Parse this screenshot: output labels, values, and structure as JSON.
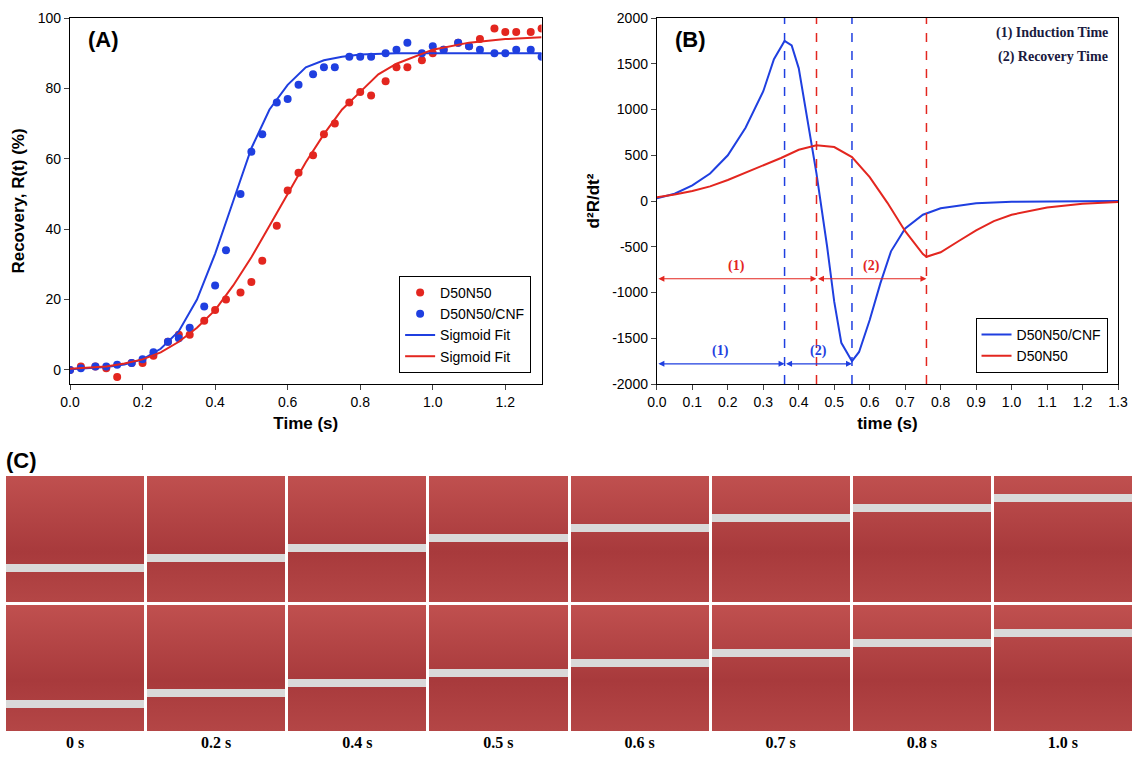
{
  "chart_data": [
    {
      "type": "scatter",
      "panel": "(A)",
      "x_label": "Time (s)",
      "y_label": "Recovery, R(t) (%)",
      "xlim": [
        0,
        1.3
      ],
      "xticks": [
        {
          "value": 0,
          "label": "0.0"
        },
        0.2,
        0.4,
        0.6,
        0.8,
        {
          "value": 1,
          "label": "1.0"
        },
        1.2
      ],
      "ylim": [
        -4,
        100
      ],
      "yticks": [
        0,
        20,
        40,
        60,
        80,
        100
      ],
      "grid": false,
      "legend": "bottom right",
      "series": [
        {
          "name": "D50N50",
          "type": "scatter",
          "marker": "circle",
          "color": "#e3261f",
          "x": [
            0,
            0.03,
            0.07,
            0.1,
            0.13,
            0.17,
            0.2,
            0.23,
            0.27,
            0.3,
            0.33,
            0.37,
            0.4,
            0.43,
            0.47,
            0.5,
            0.53,
            0.57,
            0.6,
            0.63,
            0.67,
            0.7,
            0.73,
            0.77,
            0.8,
            0.83,
            0.87,
            0.9,
            0.93,
            0.97,
            1.0,
            1.03,
            1.07,
            1.1,
            1.13,
            1.17,
            1.2,
            1.23,
            1.27,
            1.3
          ],
          "values": [
            0,
            1,
            1,
            0.5,
            -2,
            2,
            2,
            4,
            8,
            10,
            10,
            14,
            17,
            20,
            22,
            25,
            31,
            41,
            51,
            56,
            61,
            67,
            70,
            76,
            79,
            78,
            82,
            86,
            86,
            88,
            90,
            91,
            93,
            92,
            94,
            97,
            96,
            96,
            96,
            97
          ]
        },
        {
          "name": "D50N50/CNF",
          "type": "scatter",
          "marker": "circle",
          "color": "#1f3fe0",
          "x": [
            0,
            0.03,
            0.07,
            0.1,
            0.13,
            0.17,
            0.2,
            0.23,
            0.27,
            0.3,
            0.33,
            0.37,
            0.4,
            0.43,
            0.47,
            0.5,
            0.53,
            0.57,
            0.6,
            0.63,
            0.67,
            0.7,
            0.73,
            0.77,
            0.8,
            0.83,
            0.87,
            0.9,
            0.93,
            0.97,
            1.0,
            1.03,
            1.07,
            1.1,
            1.13,
            1.17,
            1.2,
            1.23,
            1.27,
            1.3
          ],
          "values": [
            0,
            0.5,
            1,
            1,
            1.5,
            2,
            3,
            5,
            8,
            9,
            12,
            18,
            24,
            34,
            50,
            62,
            67,
            76,
            77,
            81,
            84,
            86,
            86,
            89,
            89,
            89,
            90,
            91,
            93,
            90,
            92,
            91,
            93,
            92,
            91,
            90,
            90,
            91,
            91,
            89
          ]
        },
        {
          "name": "Sigmoid Fit",
          "type": "line",
          "line_style": "solid",
          "color": "#1f3fe0",
          "x": [
            0,
            0.05,
            0.1,
            0.15,
            0.2,
            0.25,
            0.3,
            0.35,
            0.4,
            0.45,
            0.5,
            0.55,
            0.6,
            0.65,
            0.7,
            0.75,
            0.8,
            0.9,
            1.0,
            1.1,
            1.2,
            1.3
          ],
          "values": [
            0.2,
            0.4,
            0.8,
            1.5,
            3,
            6,
            11,
            20,
            33,
            48,
            63,
            74,
            81,
            86,
            88,
            89,
            89.6,
            90,
            90,
            90,
            90,
            90
          ]
        },
        {
          "name": "Sigmoid Fit",
          "type": "line",
          "line_style": "solid",
          "color": "#e3261f",
          "x": [
            0,
            0.05,
            0.1,
            0.15,
            0.2,
            0.25,
            0.3,
            0.35,
            0.4,
            0.45,
            0.5,
            0.55,
            0.6,
            0.65,
            0.7,
            0.75,
            0.8,
            0.85,
            0.9,
            0.95,
            1.0,
            1.1,
            1.2,
            1.3
          ],
          "values": [
            0.3,
            0.6,
            1,
            1.8,
            3,
            5,
            8,
            12,
            17,
            24,
            32,
            41,
            50,
            59,
            67,
            74,
            79,
            84,
            87,
            89,
            91,
            93,
            94,
            94.5
          ]
        }
      ]
    },
    {
      "type": "line",
      "panel": "(B)",
      "x_label": "time (s)",
      "y_label": "d²R/dt²",
      "xlim": [
        0,
        1.3
      ],
      "xticks": [
        {
          "value": 0,
          "label": "0.0"
        },
        0.1,
        0.2,
        0.3,
        0.4,
        0.5,
        0.6,
        0.7,
        0.8,
        0.9,
        {
          "value": 1,
          "label": "1.0"
        },
        1.1,
        1.2,
        1.3
      ],
      "ylim": [
        -2000,
        2000
      ],
      "yticks": [
        -2000,
        -1500,
        -1000,
        -500,
        0,
        500,
        1000,
        1500,
        2000
      ],
      "grid": false,
      "legend": "bottom right",
      "annotations": [
        "(1) Induction Time",
        "(2) Recovery Time"
      ],
      "series": [
        {
          "name": "D50N50/CNF",
          "type": "line",
          "line_style": "solid",
          "color": "#1f3fe0",
          "x": [
            0,
            0.05,
            0.1,
            0.15,
            0.2,
            0.25,
            0.3,
            0.33,
            0.36,
            0.38,
            0.4,
            0.42,
            0.45,
            0.48,
            0.5,
            0.52,
            0.55,
            0.57,
            0.6,
            0.63,
            0.66,
            0.7,
            0.75,
            0.8,
            0.9,
            1.0,
            1.1,
            1.2,
            1.3
          ],
          "values": [
            30,
            80,
            170,
            300,
            500,
            800,
            1200,
            1550,
            1750,
            1700,
            1450,
            1000,
            300,
            -500,
            -1100,
            -1550,
            -1750,
            -1650,
            -1300,
            -900,
            -550,
            -300,
            -150,
            -80,
            -25,
            -8,
            -3,
            -1,
            0
          ]
        },
        {
          "name": "D50N50",
          "type": "line",
          "line_style": "solid",
          "color": "#e3261f",
          "x": [
            0,
            0.05,
            0.1,
            0.15,
            0.2,
            0.25,
            0.3,
            0.35,
            0.4,
            0.45,
            0.5,
            0.55,
            0.6,
            0.65,
            0.7,
            0.75,
            0.76,
            0.8,
            0.85,
            0.9,
            0.95,
            1.0,
            1.1,
            1.2,
            1.3
          ],
          "values": [
            40,
            70,
            110,
            160,
            230,
            310,
            390,
            470,
            560,
            610,
            590,
            480,
            260,
            -20,
            -330,
            -580,
            -610,
            -560,
            -440,
            -320,
            -220,
            -150,
            -70,
            -30,
            -10
          ]
        }
      ],
      "vlines": [
        {
          "x": 0.36,
          "color": "#1f3fe0",
          "line_style": "dash"
        },
        {
          "x": 0.45,
          "color": "#e3261f",
          "line_style": "dash"
        },
        {
          "x": 0.55,
          "color": "#1f3fe0",
          "line_style": "dash"
        },
        {
          "x": 0.76,
          "color": "#e3261f",
          "line_style": "dash"
        }
      ],
      "intervals": [
        {
          "label": "(1)",
          "from": 0,
          "to": 0.45,
          "y": -850,
          "color": "#e3261f"
        },
        {
          "label": "(2)",
          "from": 0.45,
          "to": 0.76,
          "y": -850,
          "color": "#e3261f"
        },
        {
          "label": "(1)",
          "from": 0,
          "to": 0.36,
          "y": -1780,
          "color": "#1f3fe0"
        },
        {
          "label": "(2)",
          "from": 0.36,
          "to": 0.55,
          "y": -1780,
          "color": "#1f3fe0"
        }
      ]
    }
  ],
  "panel_c": {
    "label": "(C)",
    "times": [
      "0 s",
      "0.2 s",
      "0.4 s",
      "0.5 s",
      "0.6 s",
      "0.7 s",
      "0.8 s",
      "1.0 s"
    ]
  }
}
